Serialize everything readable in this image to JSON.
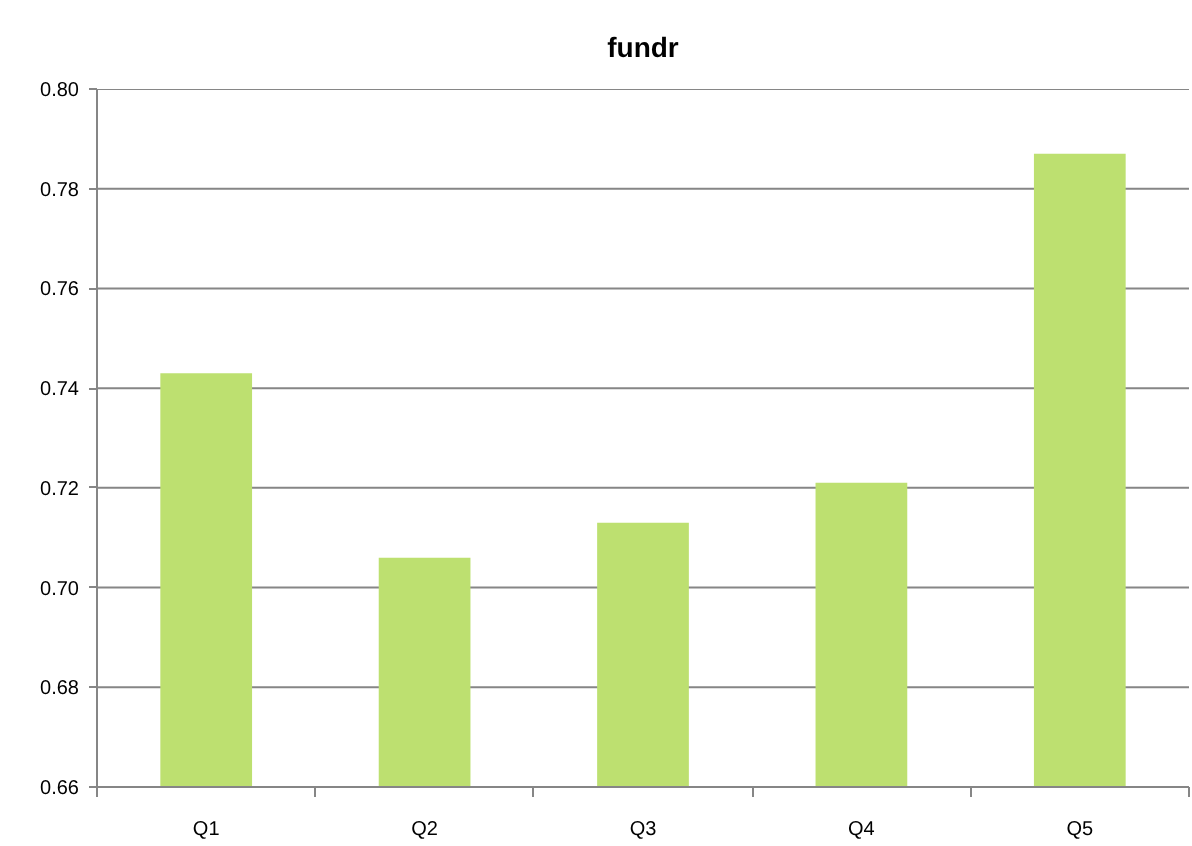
{
  "chart_data": {
    "type": "bar",
    "title": "fundr",
    "categories": [
      "Q1",
      "Q2",
      "Q3",
      "Q4",
      "Q5"
    ],
    "values": [
      0.743,
      0.706,
      0.713,
      0.721,
      0.787
    ],
    "color": "#bde070",
    "ylim": [
      0.66,
      0.8
    ],
    "yticks": [
      0.66,
      0.68,
      {
        "value": 0.7,
        "label": "0.70"
      },
      0.72,
      0.74,
      0.76,
      0.78,
      {
        "value": 0.8,
        "label": "0.80"
      }
    ],
    "grid": "y"
  }
}
